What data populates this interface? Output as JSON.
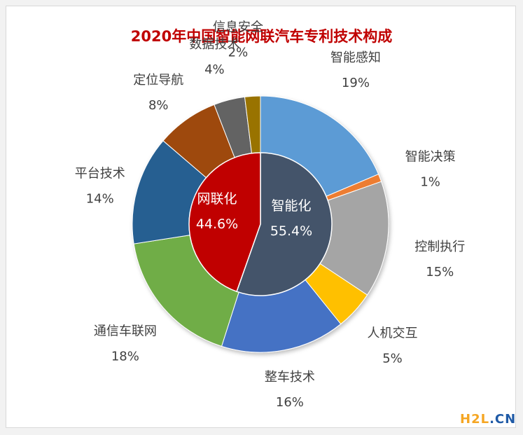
{
  "chart_data": {
    "type": "pie",
    "title": "2020年中国智能网联汽车专利技术构成",
    "inner": {
      "slices": [
        {
          "label": "智能化",
          "value_label": "55.4%",
          "value": 55.4,
          "color": "#44546a"
        },
        {
          "label": "网联化",
          "value_label": "44.6%",
          "value": 44.6,
          "color": "#c00000"
        }
      ]
    },
    "outer": {
      "slices": [
        {
          "label": "智能感知",
          "value_label": "19%",
          "value": 19,
          "color": "#5b9bd5"
        },
        {
          "label": "智能决策",
          "value_label": "1%",
          "value": 1,
          "color": "#ed7d31"
        },
        {
          "label": "控制执行",
          "value_label": "15%",
          "value": 15,
          "color": "#a5a5a5"
        },
        {
          "label": "人机交互",
          "value_label": "5%",
          "value": 5,
          "color": "#ffc000"
        },
        {
          "label": "整车技术",
          "value_label": "16%",
          "value": 16,
          "color": "#4472c4"
        },
        {
          "label": "通信车联网",
          "value_label": "18%",
          "value": 18,
          "color": "#70ad47"
        },
        {
          "label": "平台技术",
          "value_label": "14%",
          "value": 14,
          "color": "#255e91"
        },
        {
          "label": "定位导航",
          "value_label": "8%",
          "value": 8,
          "color": "#9e480e"
        },
        {
          "label": "数据技术",
          "value_label": "4%",
          "value": 4,
          "color": "#636363"
        },
        {
          "label": "信息安全",
          "value_label": "2%",
          "value": 2,
          "color": "#997300"
        }
      ]
    }
  },
  "watermark": {
    "part1": "H2L",
    "part2": ".CN"
  }
}
